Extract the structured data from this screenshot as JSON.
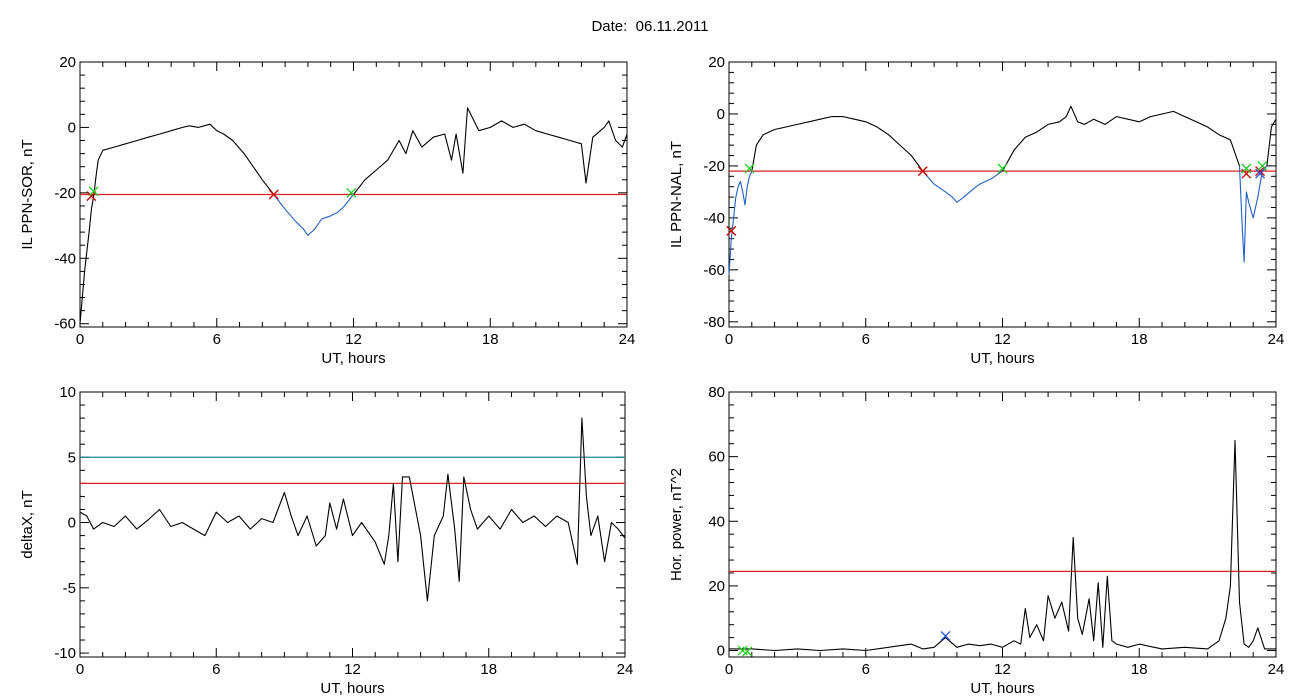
{
  "title": "Date:  06.11.2011",
  "chart_data": [
    {
      "type": "line",
      "ylabel": "IL PPN-SOR, nT",
      "xlabel": "UT, hours",
      "xlim": [
        0,
        24
      ],
      "ylim": [
        -61,
        20
      ],
      "xticks": [
        0,
        6,
        12,
        18,
        24
      ],
      "yticks": [
        -60,
        -40,
        -20,
        0,
        20
      ],
      "threshold": -20.5,
      "series": [
        {
          "color": "#000000",
          "x": [
            0,
            0.1,
            0.2,
            0.3,
            0.4,
            0.5,
            0.6,
            0.7,
            0.8,
            1,
            1.5,
            2,
            2.5,
            3,
            3.5,
            4,
            4.5,
            4.8,
            5.2,
            5.7,
            6,
            6.3,
            6.7,
            7.2,
            7.6,
            8,
            8.5
          ],
          "y": [
            -60,
            -52,
            -44,
            -38,
            -32,
            -25,
            -21,
            -15,
            -10,
            -7,
            -6,
            -5,
            -4,
            -3,
            -2,
            -1,
            0,
            0.5,
            0,
            1,
            -1,
            -2,
            -4,
            -8,
            -12,
            -16,
            -20.5
          ]
        },
        {
          "color": "#1f5fc8",
          "x": [
            8.5,
            9,
            9.5,
            9.8,
            10,
            10.3,
            10.6,
            11,
            11.3,
            11.6,
            12
          ],
          "y": [
            -20.5,
            -25,
            -29,
            -31,
            -33,
            -31,
            -28,
            -27,
            -26,
            -24,
            -20.5
          ]
        },
        {
          "color": "#000000",
          "x": [
            12,
            12.5,
            13,
            13.5,
            14,
            14.3,
            14.6,
            15,
            15.5,
            16,
            16.3,
            16.5,
            16.8,
            17,
            17.5,
            18,
            18.5,
            19,
            19.5,
            20,
            20.5,
            21,
            21.5,
            22,
            22.2,
            22.5,
            23,
            23.2,
            23.5,
            23.8,
            24
          ],
          "y": [
            -20.5,
            -16,
            -13,
            -10,
            -4,
            -8,
            -1,
            -6,
            -3,
            -2,
            -10,
            -2,
            -14,
            6,
            -1,
            0,
            2,
            0,
            1,
            -1,
            -2,
            -3,
            -4,
            -5,
            -17,
            -3,
            0,
            2,
            -4,
            -6,
            -2
          ]
        }
      ],
      "markers": [
        {
          "x": 0.5,
          "y": -21,
          "color": "#cc0000"
        },
        {
          "x": 0.6,
          "y": -19.5,
          "color": "#22cc22"
        },
        {
          "x": 8.5,
          "y": -20.5,
          "color": "#cc0000"
        },
        {
          "x": 11.9,
          "y": -20,
          "color": "#22cc22"
        }
      ]
    },
    {
      "type": "line",
      "ylabel": "IL PPN-NAL, nT",
      "xlabel": "UT, hours",
      "xlim": [
        0,
        24
      ],
      "ylim": [
        -82,
        20
      ],
      "xticks": [
        0,
        6,
        12,
        18,
        24
      ],
      "yticks": [
        -80,
        -60,
        -40,
        -20,
        0,
        20
      ],
      "threshold": -22,
      "series": [
        {
          "color": "#1f5fc8",
          "x": [
            0,
            0.1,
            0.2,
            0.3,
            0.4,
            0.5,
            0.6,
            0.7,
            0.8,
            0.9,
            1
          ],
          "y": [
            -62,
            -48,
            -40,
            -32,
            -28,
            -26,
            -30,
            -35,
            -28,
            -24,
            -22
          ]
        },
        {
          "color": "#000000",
          "x": [
            1,
            1.2,
            1.5,
            2,
            2.5,
            3,
            3.5,
            4,
            4.5,
            5,
            5.5,
            6,
            6.5,
            7,
            7.5,
            8,
            8.5
          ],
          "y": [
            -22,
            -12,
            -8,
            -6,
            -5,
            -4,
            -3,
            -2,
            -1,
            -1,
            -2,
            -3,
            -5,
            -8,
            -12,
            -16,
            -22
          ]
        },
        {
          "color": "#1f5fc8",
          "x": [
            8.5,
            9,
            9.5,
            9.8,
            10,
            10.3,
            10.7,
            11,
            11.5,
            12
          ],
          "y": [
            -22,
            -27,
            -30,
            -32,
            -34,
            -32,
            -29,
            -27,
            -25,
            -22
          ]
        },
        {
          "color": "#000000",
          "x": [
            12,
            12.5,
            13,
            13.5,
            14,
            14.5,
            14.8,
            15,
            15.3,
            15.6,
            16,
            16.5,
            17,
            17.5,
            18,
            18.5,
            19,
            19.5,
            20,
            20.5,
            21,
            21.5,
            22,
            22.4
          ],
          "y": [
            -22,
            -14,
            -9,
            -7,
            -4,
            -3,
            -1,
            3,
            -3,
            -4,
            -2,
            -4,
            -1,
            -2,
            -3,
            -1,
            0,
            1,
            -1,
            -3,
            -5,
            -8,
            -10,
            -20
          ]
        },
        {
          "color": "#1f5fc8",
          "x": [
            22.4,
            22.5,
            22.6,
            22.7,
            22.8,
            23,
            23.2,
            23.4,
            23.6
          ],
          "y": [
            -20,
            -40,
            -57,
            -30,
            -34,
            -40,
            -32,
            -22,
            -20
          ]
        },
        {
          "color": "#000000",
          "x": [
            23.6,
            23.8,
            24
          ],
          "y": [
            -20,
            -5,
            -2
          ]
        }
      ],
      "markers": [
        {
          "x": 0.1,
          "y": -45,
          "color": "#cc0000"
        },
        {
          "x": 0.9,
          "y": -21,
          "color": "#22cc22"
        },
        {
          "x": 8.5,
          "y": -22,
          "color": "#cc0000"
        },
        {
          "x": 12,
          "y": -21,
          "color": "#22cc22"
        },
        {
          "x": 22.7,
          "y": -23,
          "color": "#cc0000"
        },
        {
          "x": 22.7,
          "y": -21,
          "color": "#22cc22"
        },
        {
          "x": 23.3,
          "y": -22,
          "color": "#cc0000"
        },
        {
          "x": 23.4,
          "y": -20,
          "color": "#22cc22"
        },
        {
          "x": 23.3,
          "y": -23,
          "color": "#2255dd"
        }
      ]
    },
    {
      "type": "line",
      "ylabel": "deltaX, nT",
      "xlabel": "UT, hours",
      "xlim": [
        0,
        24
      ],
      "ylim": [
        -10.3,
        10
      ],
      "xticks": [
        0,
        6,
        12,
        18,
        24
      ],
      "yticks": [
        -10,
        -5,
        0,
        5,
        10
      ],
      "tick_labels": [
        "-10",
        "-5",
        "0",
        "5",
        "10"
      ],
      "threshold": 3,
      "threshold2": 5,
      "series": [
        {
          "color": "#000000",
          "x": [
            0,
            0.3,
            0.6,
            1,
            1.5,
            2,
            2.5,
            3,
            3.5,
            4,
            4.5,
            5,
            5.5,
            6,
            6.5,
            7,
            7.5,
            8,
            8.5,
            9,
            9.3,
            9.6,
            10,
            10.4,
            10.8,
            11,
            11.3,
            11.6,
            12,
            12.4,
            12.8,
            13,
            13.4,
            13.6,
            13.8,
            14,
            14.2,
            14.5,
            15,
            15.3,
            15.6,
            16,
            16.2,
            16.5,
            16.7,
            16.9,
            17.2,
            17.5,
            18,
            18.5,
            19,
            19.5,
            20,
            20.5,
            21,
            21.5,
            21.9,
            22.1,
            22.3,
            22.5,
            22.8,
            23.1,
            23.4,
            23.7,
            24
          ],
          "y": [
            0.8,
            0.5,
            -0.5,
            0,
            -0.3,
            0.5,
            -0.5,
            0.2,
            1,
            -0.3,
            0,
            -0.5,
            -1,
            0.8,
            0,
            0.5,
            -0.5,
            0.3,
            0,
            2.3,
            0.5,
            -1,
            0.5,
            -1.8,
            -1,
            1.5,
            -0.5,
            1.8,
            -1,
            0,
            -1,
            -1.5,
            -3.2,
            -1,
            3,
            -3,
            3.5,
            3.5,
            -1,
            -6,
            -1,
            0.5,
            3.7,
            -0.5,
            -4.5,
            3.5,
            1,
            -0.5,
            0.5,
            -0.5,
            1,
            0,
            0.5,
            -0.3,
            0.5,
            0,
            -3.2,
            8,
            2,
            -1,
            0.5,
            -3,
            0,
            -0.5,
            -1.2
          ]
        }
      ],
      "markers": []
    },
    {
      "type": "line",
      "ylabel": "Hor. power, nT^2",
      "xlabel": "UT, hours",
      "xlim": [
        0,
        24
      ],
      "ylim": [
        -2,
        80
      ],
      "xticks": [
        0,
        6,
        12,
        18,
        24
      ],
      "yticks": [
        0,
        20,
        40,
        60,
        80
      ],
      "threshold": 24.5,
      "series": [
        {
          "color": "#000000",
          "x": [
            0,
            1,
            2,
            3,
            4,
            5,
            6,
            7,
            8,
            8.5,
            9,
            9.5,
            10,
            10.5,
            11,
            11.5,
            12,
            12.5,
            12.8,
            13,
            13.2,
            13.5,
            13.8,
            14,
            14.3,
            14.6,
            14.9,
            15.1,
            15.3,
            15.5,
            15.8,
            16,
            16.2,
            16.4,
            16.6,
            16.8,
            17,
            17.5,
            18,
            19,
            20,
            21,
            21.5,
            21.8,
            22,
            22.2,
            22.4,
            22.6,
            22.8,
            23,
            23.2,
            23.5,
            24
          ],
          "y": [
            0.5,
            0.5,
            0,
            0.5,
            0,
            0.5,
            0,
            1,
            2,
            0.5,
            1,
            4,
            1,
            2,
            1.5,
            2,
            1,
            3,
            2,
            13,
            4,
            8,
            3,
            17,
            10,
            15,
            6,
            35,
            10,
            5,
            16,
            3,
            21,
            1,
            23,
            3,
            2,
            1,
            2,
            0.5,
            1,
            0.5,
            3,
            10,
            20,
            65,
            15,
            2,
            1,
            3,
            7,
            0.5,
            0.5
          ]
        }
      ],
      "markers": [
        {
          "x": 0.6,
          "y": 0,
          "color": "#22cc22"
        },
        {
          "x": 0.8,
          "y": -0.3,
          "color": "#22cc22"
        },
        {
          "x": 9.5,
          "y": 4.5,
          "color": "#2255dd"
        }
      ]
    }
  ]
}
